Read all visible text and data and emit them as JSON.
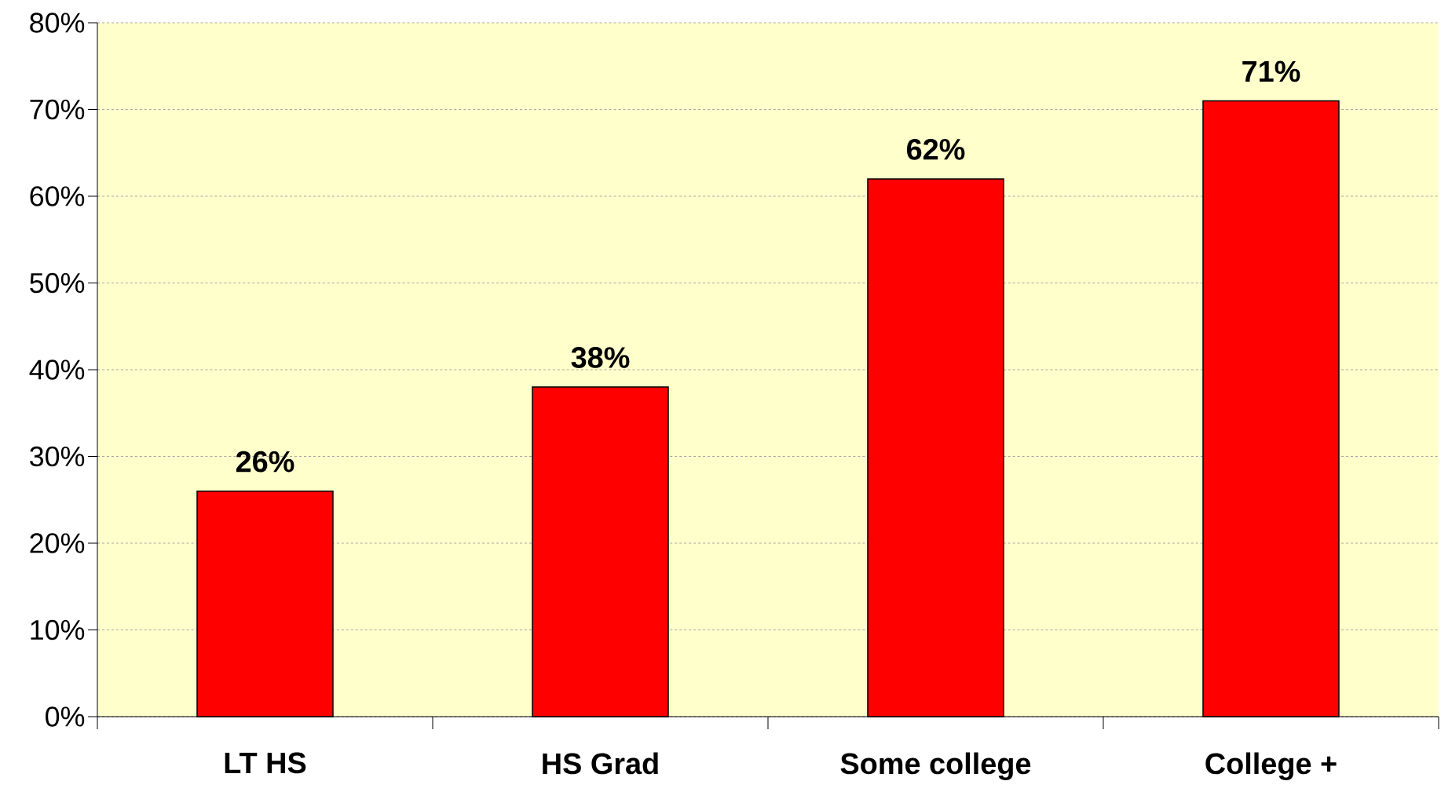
{
  "chart_data": {
    "type": "bar",
    "categories": [
      "LT HS",
      "HS Grad",
      "Some college",
      "College +"
    ],
    "values": [
      26,
      38,
      62,
      71
    ],
    "value_labels": [
      "26%",
      "38%",
      "62%",
      "71%"
    ],
    "color": "#ff0000",
    "ylim": [
      0,
      80
    ],
    "yticks": [
      {
        "value": 0,
        "label": "0%"
      },
      {
        "value": 10,
        "label": "10%"
      },
      {
        "value": 20,
        "label": "20%"
      },
      {
        "value": 30,
        "label": "30%"
      },
      {
        "value": 40,
        "label": "40%"
      },
      {
        "value": 50,
        "label": "50%"
      },
      {
        "value": 60,
        "label": "60%"
      },
      {
        "value": 70,
        "label": "70%"
      },
      {
        "value": 80,
        "label": "80%"
      }
    ],
    "grid": "y"
  }
}
